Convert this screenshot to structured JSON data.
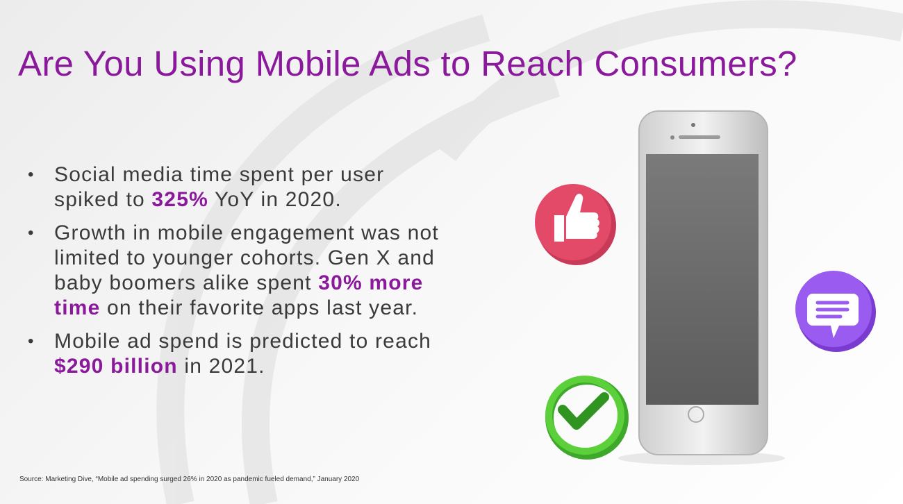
{
  "title": "Are You Using Mobile Ads to Reach Consumers?",
  "bullets": [
    {
      "before": "Social media time spent per user spiked to",
      "highlight": "325%",
      "after": "YoY in 2020."
    },
    {
      "before": "Growth in mobile engagement was not limited to younger cohorts. Gen X and baby boomers alike spent",
      "highlight": "30% more time",
      "after": "on their favorite apps last year."
    },
    {
      "before": "Mobile ad spend is predicted to reach",
      "highlight": "$290 billion",
      "after": "in 2021."
    }
  ],
  "source": "Source: Marketing Dive, “Mobile ad spending surged 26% in 2020 as pandemic fueled demand,” January 2020"
}
